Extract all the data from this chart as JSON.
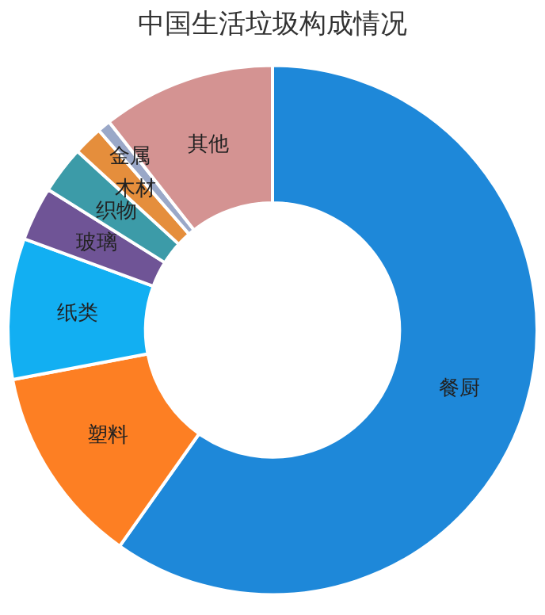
{
  "chart_data": {
    "type": "donut",
    "title": "中国生活垃圾构成情况",
    "categories": [
      "餐厨",
      "塑料",
      "纸类",
      "玻璃",
      "织物",
      "木材",
      "金属",
      "其他"
    ],
    "values": [
      59.8,
      12.2,
      8.6,
      3.3,
      2.9,
      1.8,
      0.8,
      10.6
    ],
    "colors": [
      "#1e88d9",
      "#fd7f23",
      "#12aff2",
      "#6f5496",
      "#3c9ba8",
      "#e58e3c",
      "#9aa8c8",
      "#d49392"
    ],
    "legend": false
  }
}
